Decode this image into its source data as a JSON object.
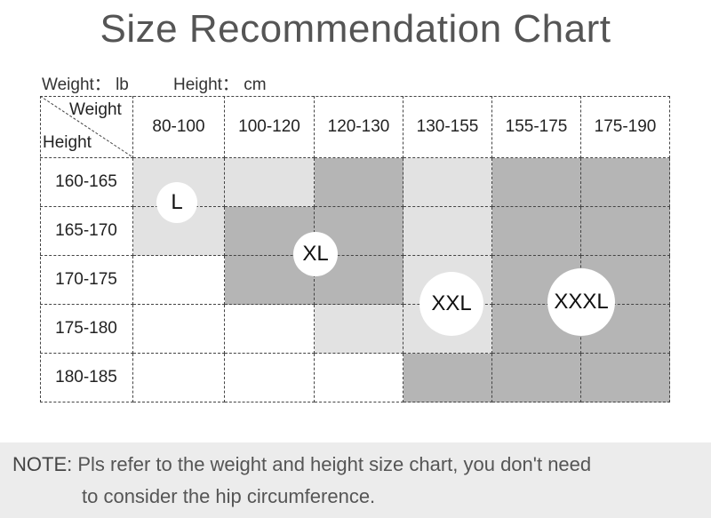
{
  "title": "Size Recommendation Chart",
  "units": {
    "weight": "Weight： lb",
    "height": "Height： cm"
  },
  "table": {
    "corner_weight": "Weight",
    "corner_height": "Height",
    "weight_ranges": [
      "80-100",
      "100-120",
      "120-130",
      "130-155",
      "155-175",
      "175-190"
    ],
    "height_ranges": [
      "160-165",
      "165-170",
      "170-175",
      "175-180",
      "180-185"
    ],
    "shade_colors": {
      "white": "#ffffff",
      "light": "#e2e2e2",
      "dark": "#b5b5b5"
    },
    "cell_shades": [
      [
        "light",
        "light",
        "dark",
        "light",
        "dark",
        "dark"
      ],
      [
        "light",
        "dark",
        "dark",
        "light",
        "dark",
        "dark"
      ],
      [
        "white",
        "dark",
        "dark",
        "light",
        "dark",
        "dark"
      ],
      [
        "white",
        "white",
        "light",
        "light",
        "dark",
        "dark"
      ],
      [
        "white",
        "white",
        "white",
        "dark",
        "dark",
        "dark"
      ]
    ]
  },
  "sizes": {
    "l": "L",
    "xl": "XL",
    "xxl": "XXL",
    "xxxl": "XXXL"
  },
  "note": {
    "label": "NOTE:",
    "line1": "Pls refer to the weight and height size chart, you don't need",
    "line2": "to consider the hip circumference."
  }
}
